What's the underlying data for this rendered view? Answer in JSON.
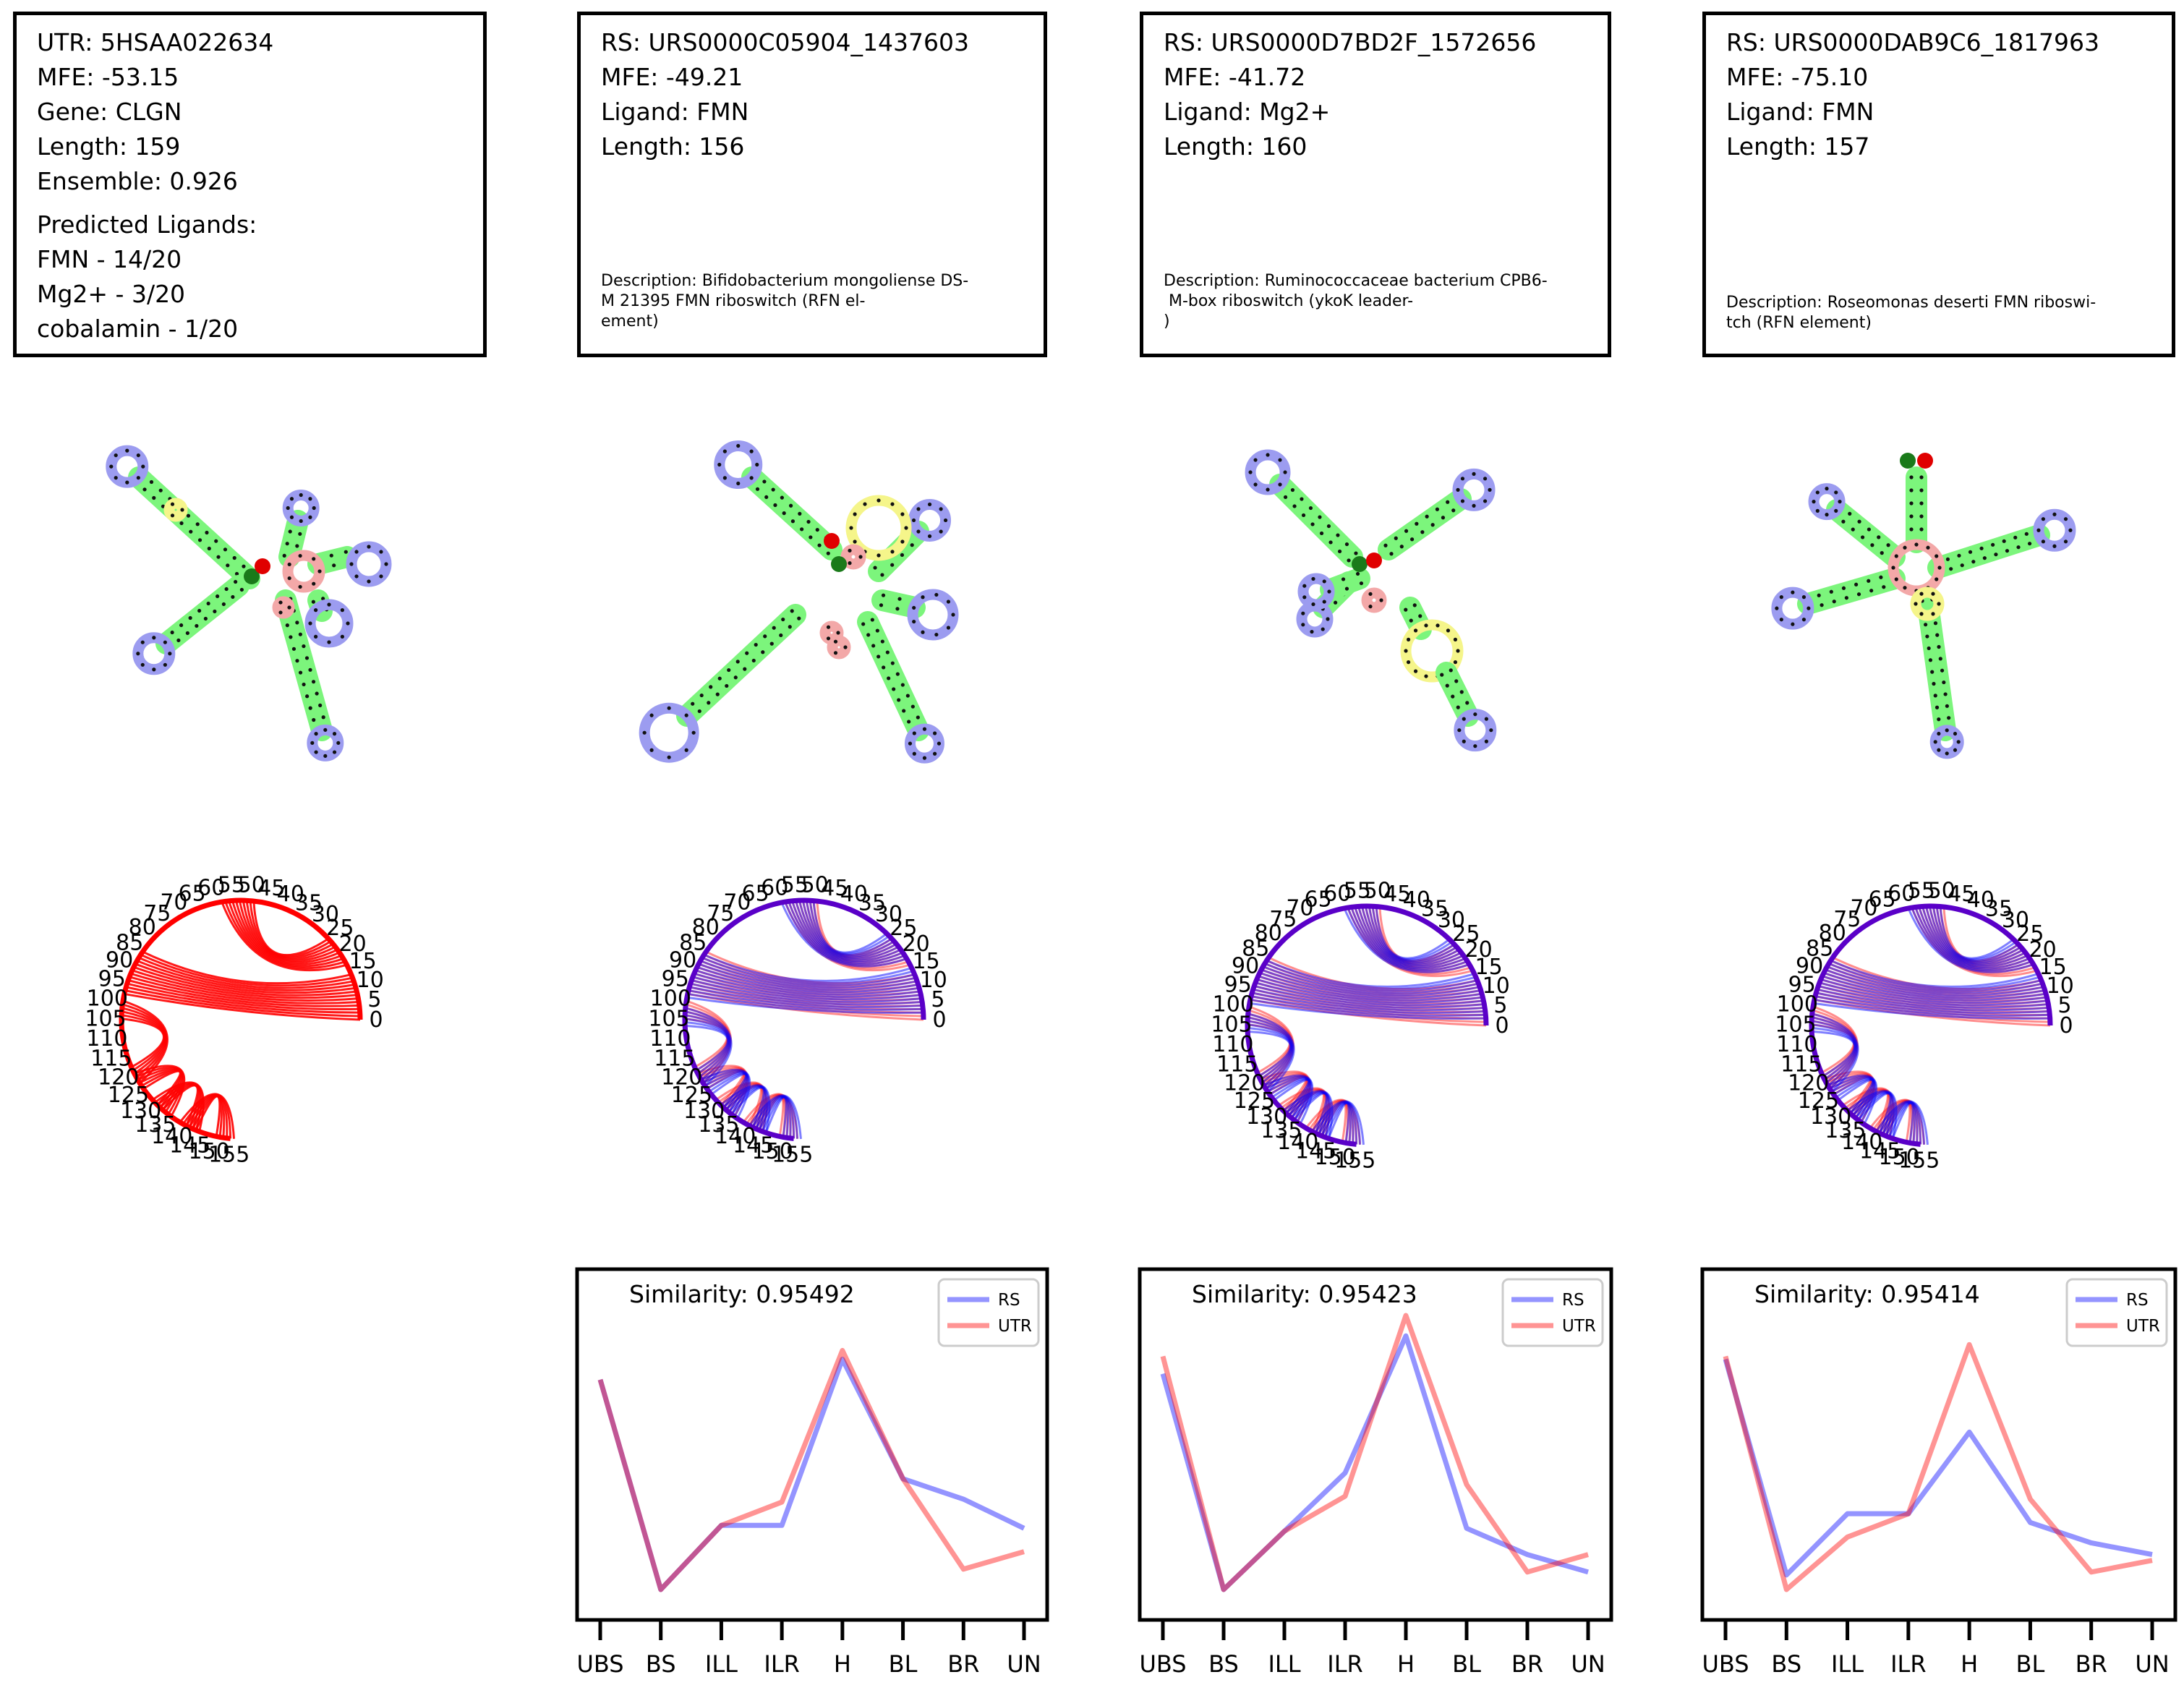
{
  "colors": {
    "rs": "#0000ff",
    "utr": "#ff0000",
    "stem": "#7cf57c",
    "hairpin": "#9c9cf0",
    "interior": "#f5f58a",
    "multi": "#f3a8a8",
    "start_dot": "#1a7a1a",
    "end_dot": "#e00000"
  },
  "info_cards": [
    {
      "lines": [
        "UTR: 5HSAA022634",
        "MFE: -53.15",
        "Gene: CLGN",
        "Length: 159",
        "Ensemble: 0.926"
      ],
      "predicted": [
        "Predicted Ligands:",
        "FMN - 14/20",
        "Mg2+ - 3/20",
        "cobalamin - 1/20"
      ],
      "description": ""
    },
    {
      "lines": [
        "RS: URS0000C05904_1437603",
        "MFE: -49.21",
        "Ligand: FMN",
        "Length: 156"
      ],
      "predicted": [],
      "description": "Description: Bifidobacterium mongoliense DS-\nM 21395 FMN riboswitch (RFN el-\nement)"
    },
    {
      "lines": [
        "RS: URS0000D7BD2F_1572656",
        "MFE: -41.72",
        "Ligand: Mg2+",
        "Length: 160"
      ],
      "predicted": [],
      "description": "Description: Ruminococcaceae bacterium CPB6-\n M-box riboswitch (ykoK leader-\n)"
    },
    {
      "lines": [
        "RS: URS0000DAB9C6_1817963",
        "MFE: -75.10",
        "Ligand: FMN",
        "Length: 157"
      ],
      "predicted": [],
      "description": "Description: Roseomonas deserti FMN riboswi-\ntch (RFN element)"
    }
  ],
  "arc_tick_labels": [
    "0",
    "5",
    "10",
    "15",
    "20",
    "25",
    "30",
    "35",
    "40",
    "45",
    "50",
    "55",
    "60",
    "65",
    "70",
    "75",
    "80",
    "85",
    "90",
    "95",
    "100",
    "105",
    "110",
    "115",
    "120",
    "125",
    "130",
    "135",
    "140",
    "145",
    "150",
    "155"
  ],
  "chart_data": [
    {
      "type": "line",
      "title": "Similarity: 0.95492",
      "categories": [
        "UBS",
        "BS",
        "ILL",
        "ILR",
        "H",
        "BL",
        "BR",
        "UN"
      ],
      "series": [
        {
          "name": "RS",
          "values": [
            0.72,
            0.0,
            0.22,
            0.22,
            0.79,
            0.38,
            0.31,
            0.21
          ]
        },
        {
          "name": "UTR",
          "values": [
            0.72,
            0.0,
            0.22,
            0.3,
            0.82,
            0.38,
            0.07,
            0.13
          ]
        }
      ],
      "legend": "top-right"
    },
    {
      "type": "line",
      "title": "Similarity: 0.95423",
      "categories": [
        "UBS",
        "BS",
        "ILL",
        "ILR",
        "H",
        "BL",
        "BR",
        "UN"
      ],
      "series": [
        {
          "name": "RS",
          "values": [
            0.74,
            0.0,
            0.2,
            0.4,
            0.87,
            0.21,
            0.12,
            0.06
          ]
        },
        {
          "name": "UTR",
          "values": [
            0.8,
            0.0,
            0.2,
            0.32,
            0.94,
            0.36,
            0.06,
            0.12
          ]
        }
      ],
      "legend": "top-right"
    },
    {
      "type": "line",
      "title": "Similarity: 0.95414",
      "categories": [
        "UBS",
        "BS",
        "ILL",
        "ILR",
        "H",
        "BL",
        "BR",
        "UN"
      ],
      "series": [
        {
          "name": "RS",
          "values": [
            0.79,
            0.05,
            0.26,
            0.26,
            0.54,
            0.23,
            0.16,
            0.12
          ]
        },
        {
          "name": "UTR",
          "values": [
            0.8,
            0.0,
            0.18,
            0.26,
            0.84,
            0.31,
            0.06,
            0.1
          ]
        }
      ],
      "legend": "top-right"
    }
  ],
  "utr_profile": {
    "note_free": true,
    "values": [
      0.72,
      0.0,
      0.22,
      0.3,
      0.82,
      0.38,
      0.07,
      0.13
    ]
  }
}
